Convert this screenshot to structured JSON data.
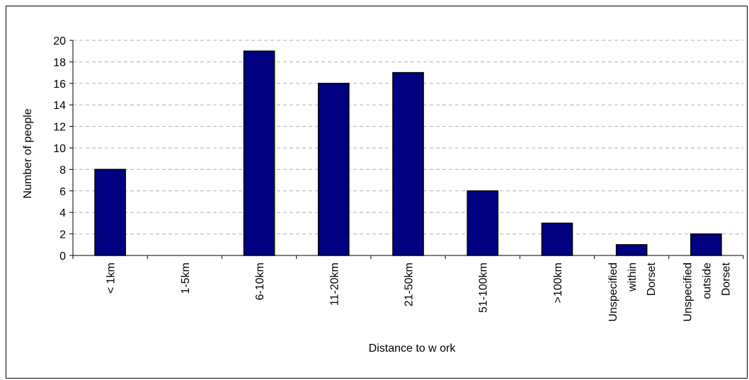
{
  "chart_data": {
    "type": "bar",
    "categories": [
      [
        "< 1km"
      ],
      [
        "1-5km"
      ],
      [
        "6-10km"
      ],
      [
        "11-20km"
      ],
      [
        "21-50km"
      ],
      [
        "51-100km"
      ],
      [
        ">100km"
      ],
      [
        "Unspecified",
        "within",
        "Dorset"
      ],
      [
        "Unspecified",
        "outside",
        "Dorset"
      ]
    ],
    "values": [
      8,
      0,
      19,
      16,
      17,
      6,
      3,
      1,
      2
    ],
    "title": "",
    "xlabel": "Distance to w ork",
    "ylabel": "Number of people",
    "ylim": [
      0,
      20
    ],
    "yticks": [
      0,
      2,
      4,
      6,
      8,
      10,
      12,
      14,
      16,
      18,
      20
    ],
    "grid": true,
    "legend": "none",
    "colors": {
      "bar_fill": "#000080",
      "bar_stroke": "#000000",
      "grid": "#b0b0b0",
      "axis": "#000000"
    }
  }
}
